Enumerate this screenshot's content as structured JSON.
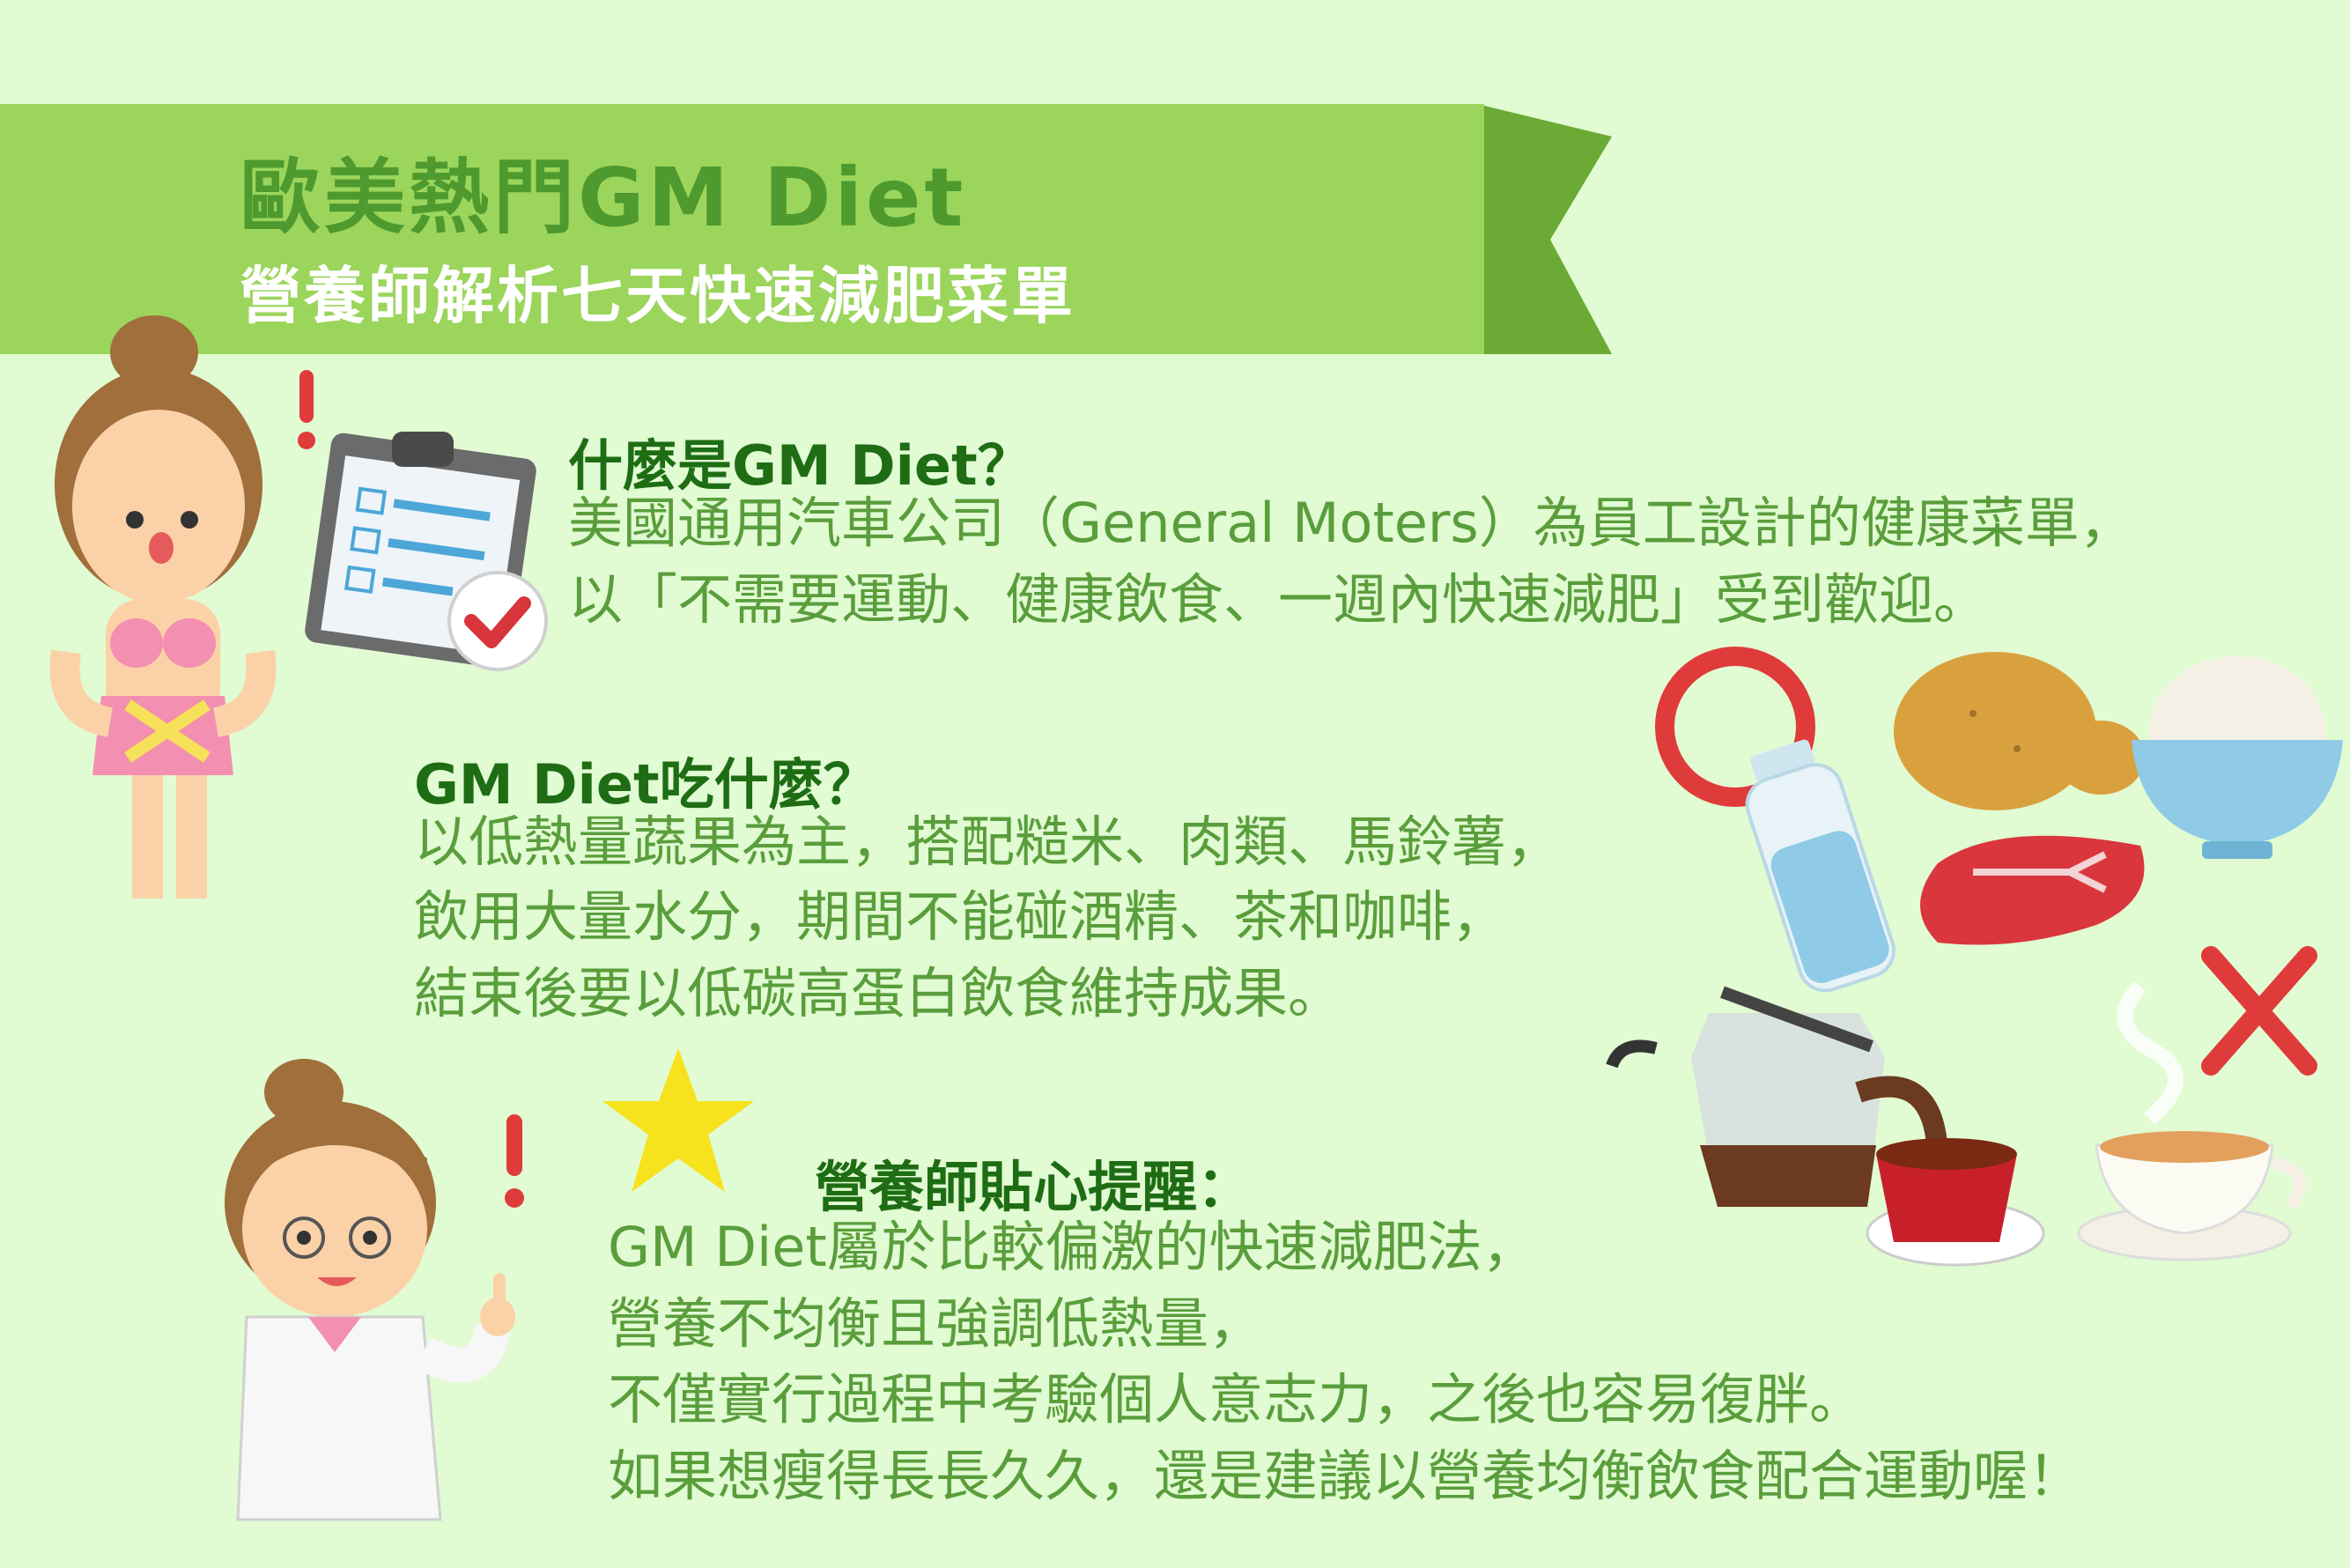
{
  "header": {
    "title": "歐美熱門GM Diet",
    "subtitle": "營養師解析七天快速減肥菜單"
  },
  "section_what": {
    "heading": "什麼是GM Diet？",
    "lines": [
      "美國通用汽車公司（General Moters）為員工設計的健康菜單，",
      "以「不需要運動、健康飲食、一週內快速減肥」受到歡迎。"
    ]
  },
  "section_eat": {
    "heading": "GM Diet吃什麼？",
    "lines": [
      "以低熱量蔬果為主，搭配糙米、肉類、馬鈴薯，",
      "飲用大量水分，期間不能碰酒精、茶和咖啡，",
      "結束後要以低碳高蛋白飲食維持成果。"
    ]
  },
  "section_tip": {
    "heading": "營養師貼心提醒：",
    "lines": [
      "GM Diet屬於比較偏激的快速減肥法，",
      "營養不均衡且強調低熱量，",
      "不僅實行過程中考驗個人意志力，之後也容易復胖。",
      "如果想瘦得長長久久，還是建議以營養均衡飲食配合運動喔！"
    ]
  },
  "colors": {
    "background": "#e1fbd3",
    "banner_light": "#9bd55c",
    "banner_dark": "#6aaa35",
    "heading": "#1e6d14",
    "body": "#5a9e3c",
    "title": "#4e9a2e"
  },
  "icons": [
    "woman-bikini-icon",
    "clipboard-check-icon",
    "circle-allowed-icon",
    "water-bottle-icon",
    "potato-icon",
    "rice-bowl-icon",
    "steak-icon",
    "coffee-pot-icon",
    "coffee-cup-icon",
    "tea-cup-icon",
    "cross-forbidden-icon",
    "star-icon",
    "nutritionist-icon"
  ]
}
